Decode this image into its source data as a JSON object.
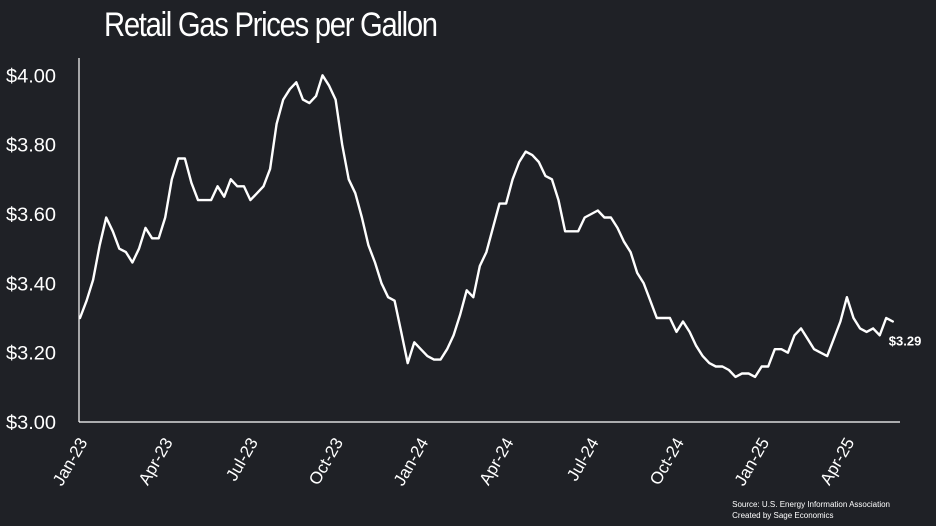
{
  "chart_data": {
    "type": "line",
    "title": "Retail Gas Prices per Gallon",
    "xlabel": "",
    "ylabel": "",
    "y_ticks": [
      "$3.00",
      "$3.20",
      "$3.40",
      "$3.60",
      "$3.80",
      "$4.00"
    ],
    "y_tick_values": [
      3.0,
      3.2,
      3.4,
      3.6,
      3.8,
      4.0
    ],
    "ylim": [
      3.0,
      4.05
    ],
    "x_ticks": [
      "Jan-23",
      "Apr-23",
      "Jul-23",
      "Oct-23",
      "Jan-24",
      "Apr-24",
      "Jul-24",
      "Oct-24",
      "Jan-25",
      "Apr-25"
    ],
    "x_tick_weeks": [
      0,
      13,
      26,
      39,
      52,
      65,
      78,
      91,
      104,
      117
    ],
    "grid": false,
    "line_color": "#ffffff",
    "end_label": "$3.29",
    "series": [
      {
        "name": "",
        "values": [
          3.3,
          3.35,
          3.41,
          3.51,
          3.59,
          3.55,
          3.5,
          3.49,
          3.46,
          3.5,
          3.56,
          3.53,
          3.53,
          3.59,
          3.7,
          3.76,
          3.76,
          3.69,
          3.64,
          3.64,
          3.64,
          3.68,
          3.65,
          3.7,
          3.68,
          3.68,
          3.64,
          3.66,
          3.68,
          3.73,
          3.86,
          3.93,
          3.96,
          3.98,
          3.93,
          3.92,
          3.94,
          4.0,
          3.97,
          3.93,
          3.8,
          3.7,
          3.66,
          3.59,
          3.51,
          3.46,
          3.4,
          3.36,
          3.35,
          3.26,
          3.17,
          3.23,
          3.21,
          3.19,
          3.18,
          3.18,
          3.21,
          3.25,
          3.31,
          3.38,
          3.36,
          3.45,
          3.49,
          3.56,
          3.63,
          3.63,
          3.7,
          3.75,
          3.78,
          3.77,
          3.75,
          3.71,
          3.7,
          3.64,
          3.55,
          3.55,
          3.55,
          3.59,
          3.6,
          3.61,
          3.59,
          3.59,
          3.56,
          3.52,
          3.49,
          3.43,
          3.4,
          3.35,
          3.3,
          3.3,
          3.3,
          3.26,
          3.29,
          3.26,
          3.22,
          3.19,
          3.17,
          3.16,
          3.16,
          3.15,
          3.13,
          3.14,
          3.14,
          3.13,
          3.16,
          3.16,
          3.21,
          3.21,
          3.2,
          3.25,
          3.27,
          3.24,
          3.21,
          3.2,
          3.19,
          3.24,
          3.29,
          3.36,
          3.3,
          3.27,
          3.26,
          3.27,
          3.25,
          3.3,
          3.29
        ]
      }
    ],
    "source_lines": [
      "Source: U.S. Energy Information Association",
      "Created by Sage Economics"
    ]
  }
}
